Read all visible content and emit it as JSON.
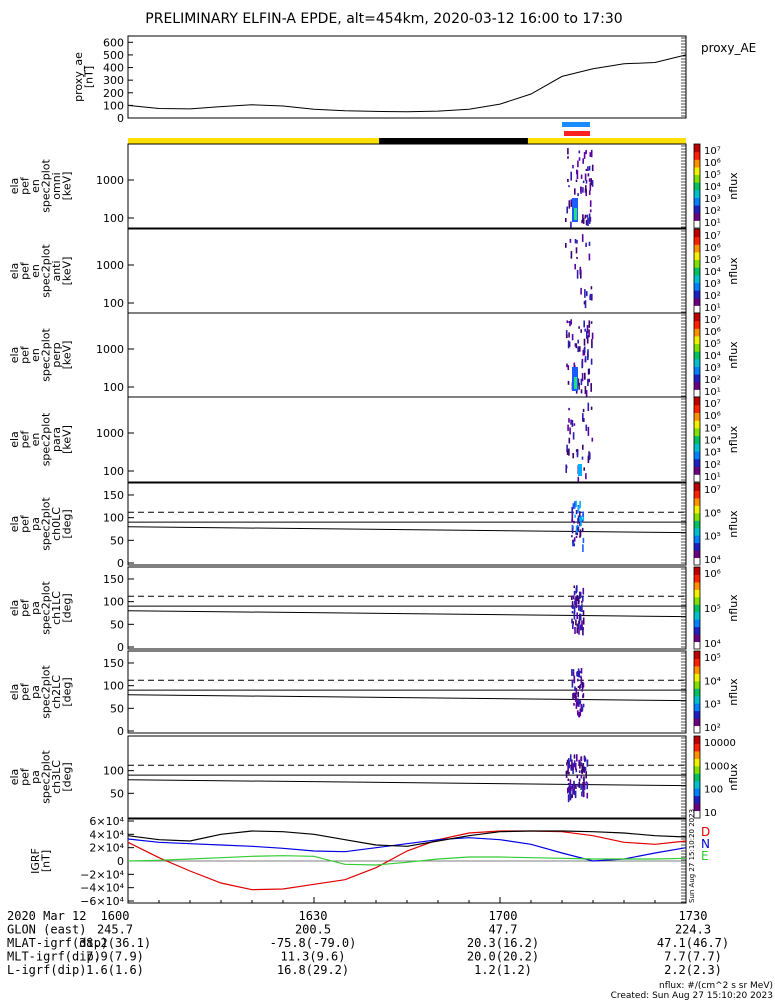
{
  "title": "PRELIMINARY ELFIN-A EPDE, alt=454km, 2020-03-12 16:00 to 17:30",
  "colors": {
    "yellow": "#ffe000",
    "black": "#000000",
    "blue_bar": "#1a8cff",
    "red_bar": "#ff2020",
    "red": "#e00000",
    "blue": "#0000e0",
    "green": "#33cc33"
  },
  "ae_panel": {
    "ylabel": [
      "proxy_ae",
      "[nT]"
    ],
    "legend": "proxy_AE",
    "yticks": [
      "600",
      "500",
      "400",
      "300",
      "200",
      "100",
      "0"
    ],
    "ylim": [
      0,
      650
    ]
  },
  "spec_panels": [
    {
      "ylabel": [
        "ela",
        "pef",
        "en",
        "spec2plot",
        "omni",
        "[keV]"
      ],
      "yticks": [
        "1000",
        "100"
      ],
      "cbticks": [
        "10⁷",
        "10⁶",
        "10⁵",
        "10⁴",
        "10³",
        "10²",
        "10¹"
      ],
      "cblabel": "nflux"
    },
    {
      "ylabel": [
        "ela",
        "pef",
        "en",
        "spec2plot",
        "anti",
        "[keV]"
      ],
      "yticks": [
        "1000",
        "100"
      ],
      "cbticks": [
        "10⁷",
        "10⁶",
        "10⁵",
        "10⁴",
        "10³",
        "10²",
        "10¹"
      ],
      "cblabel": "nflux"
    },
    {
      "ylabel": [
        "ela",
        "pef",
        "en",
        "spec2plot",
        "perp",
        "[keV]"
      ],
      "yticks": [
        "1000",
        "100"
      ],
      "cbticks": [
        "10⁷",
        "10⁶",
        "10⁵",
        "10⁴",
        "10³",
        "10²",
        "10¹"
      ],
      "cblabel": "nflux"
    },
    {
      "ylabel": [
        "ela",
        "pef",
        "en",
        "spec2plot",
        "para",
        "[keV]"
      ],
      "yticks": [
        "1000",
        "100"
      ],
      "cbticks": [
        "10⁷",
        "10⁶",
        "10⁵",
        "10⁴",
        "10³",
        "10²",
        "10¹"
      ],
      "cblabel": "nflux"
    }
  ],
  "pa_panels": [
    {
      "ylabel": [
        "ela",
        "pef",
        "pa",
        "spec2plot",
        "ch0LC",
        "[deg]"
      ],
      "yticks": [
        "150",
        "100",
        "50",
        "0"
      ],
      "cbticks": [
        "10⁷",
        "10⁶",
        "10⁵",
        "10⁴"
      ],
      "cblabel": "nflux"
    },
    {
      "ylabel": [
        "ela",
        "pef",
        "pa",
        "spec2plot",
        "ch1LC",
        "[deg]"
      ],
      "yticks": [
        "150",
        "100",
        "50",
        "0"
      ],
      "cbticks": [
        "10⁶",
        "10⁵",
        "10⁴"
      ],
      "cblabel": "nflux"
    },
    {
      "ylabel": [
        "ela",
        "pef",
        "pa",
        "spec2plot",
        "ch2LC",
        "[deg]"
      ],
      "yticks": [
        "150",
        "100",
        "50",
        "0"
      ],
      "cbticks": [
        "10⁵",
        "10⁴",
        "10³",
        "10²"
      ],
      "cblabel": "nflux"
    },
    {
      "ylabel": [
        "ela",
        "pef",
        "pa",
        "spec2plot",
        "ch3LC",
        "[deg]"
      ],
      "yticks": [
        "100",
        "50"
      ],
      "cbticks": [
        "10000",
        "1000",
        "100",
        "10"
      ],
      "cblabel": "nflux"
    }
  ],
  "igrf_panel": {
    "ylabel": [
      "IGRF",
      "[nT]"
    ],
    "yticks": [
      "6×10⁴",
      "4×10⁴",
      "2×10⁴",
      "0",
      "−2×10⁴",
      "−4×10⁴",
      "−6×10⁴"
    ],
    "legend": [
      "D",
      "N",
      "E"
    ],
    "stamp": "Sun Aug 27 15:10:20 2023"
  },
  "footer": {
    "rows": [
      {
        "label": "2020 Mar 12",
        "values": [
          "1600",
          "1630",
          "1700",
          "1730"
        ]
      },
      {
        "label": "GLON (east)",
        "values": [
          "245.7",
          "200.5",
          "47.7",
          "224.3"
        ]
      },
      {
        "label": "MLAT-igrf(dip)",
        "values": [
          "38.2(36.1)",
          "-75.8(-79.0)",
          "20.3(16.2)",
          "47.1(46.7)"
        ]
      },
      {
        "label": "MLT-igrf(dip)",
        "values": [
          "7.9(7.9)",
          "11.3(9.6)",
          "20.0(20.2)",
          "7.7(7.7)"
        ]
      },
      {
        "label": "L-igrf(dip)",
        "values": [
          "1.6(1.6)",
          "16.8(29.2)",
          "1.2(1.2)",
          "2.2(2.3)"
        ]
      }
    ],
    "units_note": "nflux: #/(cm^2 s sr MeV)",
    "created": "Created: Sun Aug 27 15:10:20 2023"
  },
  "chart_data": {
    "type": "line",
    "title": "PRELIMINARY ELFIN-A EPDE, alt=454km, 2020-03-12 16:00 to 17:30",
    "x_ticks": [
      "1600",
      "1630",
      "1700",
      "1730"
    ],
    "x_minutes": [
      0,
      5,
      10,
      15,
      20,
      25,
      30,
      35,
      40,
      45,
      50,
      55,
      60,
      65,
      70,
      75,
      80,
      85,
      90
    ],
    "proxy_ae": [
      100,
      75,
      72,
      90,
      105,
      95,
      70,
      58,
      52,
      50,
      55,
      70,
      110,
      190,
      330,
      390,
      430,
      440,
      500
    ],
    "igrf": [
      {
        "name": "D",
        "values": [
          28000,
          5000,
          -15000,
          -33000,
          -43000,
          -42000,
          -35000,
          -28000,
          -10000,
          15000,
          32000,
          42000,
          45000,
          45000,
          44000,
          38000,
          28000,
          25000,
          30000
        ]
      },
      {
        "name": "N",
        "values": [
          33000,
          28000,
          26000,
          24000,
          22000,
          19000,
          15000,
          14000,
          20000,
          26000,
          32000,
          35000,
          32000,
          25000,
          12000,
          0,
          3000,
          12000,
          20000
        ]
      },
      {
        "name": "E",
        "values": [
          0,
          1000,
          3000,
          5000,
          7000,
          8000,
          7000,
          -5000,
          -6000,
          -2000,
          3000,
          6000,
          6000,
          5000,
          4000,
          3000,
          3000,
          3000,
          4000
        ]
      },
      {
        "name": "total",
        "values": [
          38000,
          32000,
          30000,
          40000,
          45000,
          44000,
          40000,
          32000,
          24000,
          22000,
          30000,
          38000,
          44000,
          45000,
          45000,
          44000,
          42000,
          38000,
          36000
        ]
      }
    ],
    "ylim_igrf": [
      -60000,
      60000
    ],
    "colorbar_label": "nflux"
  }
}
